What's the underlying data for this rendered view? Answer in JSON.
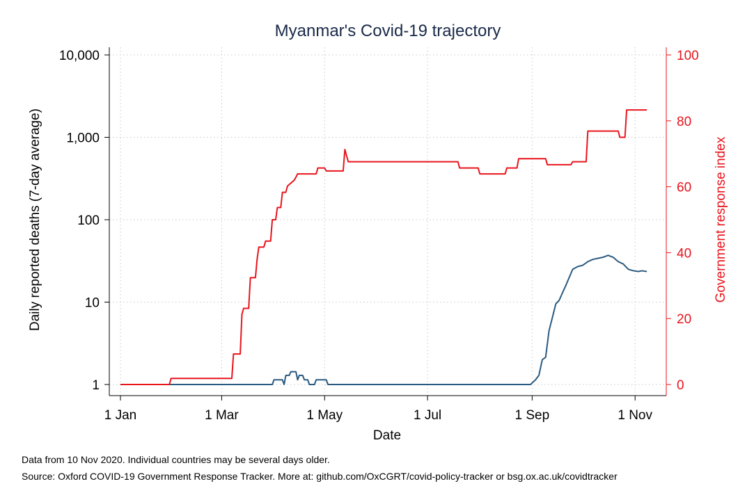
{
  "chart_data": {
    "type": "line",
    "title": "Myanmar's Covid-19 trajectory",
    "xlabel": "Date",
    "ylabel_left": "Daily reported deaths (7-day average)",
    "ylabel_right": "Government response index",
    "x_ticks": [
      "1 Jan",
      "1 Mar",
      "1 May",
      "1 Jul",
      "1 Sep",
      "1 Nov"
    ],
    "x_tick_dates": [
      "2020-01-01",
      "2020-03-01",
      "2020-05-01",
      "2020-07-01",
      "2020-09-01",
      "2020-11-01"
    ],
    "xlim": [
      "2020-01-01",
      "2020-11-10"
    ],
    "y_left": {
      "scale": "log",
      "lim": [
        1,
        10000
      ],
      "ticks": [
        1,
        10,
        100,
        1000,
        10000
      ],
      "tick_labels": [
        "1",
        "10",
        "100",
        "1,000",
        "10,000"
      ]
    },
    "y_right": {
      "scale": "linear",
      "lim": [
        0,
        100
      ],
      "ticks": [
        0,
        20,
        40,
        60,
        80,
        100
      ],
      "tick_labels": [
        "0",
        "20",
        "40",
        "60",
        "80",
        "100"
      ]
    },
    "grid": true,
    "colors": {
      "deaths": "#2a5a80",
      "response": "#e8141c",
      "right_axis": "#e8141c"
    },
    "series": [
      {
        "axis": "left",
        "color": "#2a5a80",
        "points": [
          [
            "2020-01-01",
            1
          ],
          [
            "2020-03-31",
            1
          ],
          [
            "2020-04-01",
            1.14
          ],
          [
            "2020-04-06",
            1.14
          ],
          [
            "2020-04-07",
            1
          ],
          [
            "2020-04-08",
            1.29
          ],
          [
            "2020-04-10",
            1.29
          ],
          [
            "2020-04-11",
            1.43
          ],
          [
            "2020-04-14",
            1.43
          ],
          [
            "2020-04-15",
            1.14
          ],
          [
            "2020-04-16",
            1.29
          ],
          [
            "2020-04-18",
            1.29
          ],
          [
            "2020-04-19",
            1.14
          ],
          [
            "2020-04-21",
            1.14
          ],
          [
            "2020-04-22",
            1
          ],
          [
            "2020-04-25",
            1
          ],
          [
            "2020-04-26",
            1.14
          ],
          [
            "2020-05-02",
            1.14
          ],
          [
            "2020-05-03",
            1
          ],
          [
            "2020-08-31",
            1
          ],
          [
            "2020-09-03",
            1.14
          ],
          [
            "2020-09-05",
            1.29
          ],
          [
            "2020-09-07",
            2
          ],
          [
            "2020-09-09",
            2.14
          ],
          [
            "2020-09-11",
            4.5
          ],
          [
            "2020-09-13",
            6.5
          ],
          [
            "2020-09-15",
            9.5
          ],
          [
            "2020-09-17",
            10.5
          ],
          [
            "2020-09-19",
            13
          ],
          [
            "2020-09-21",
            16
          ],
          [
            "2020-09-23",
            20
          ],
          [
            "2020-09-25",
            25
          ],
          [
            "2020-09-28",
            27
          ],
          [
            "2020-10-01",
            28
          ],
          [
            "2020-10-04",
            31
          ],
          [
            "2020-10-07",
            33
          ],
          [
            "2020-10-10",
            34
          ],
          [
            "2020-10-13",
            35
          ],
          [
            "2020-10-16",
            37
          ],
          [
            "2020-10-19",
            35
          ],
          [
            "2020-10-22",
            31
          ],
          [
            "2020-10-25",
            29
          ],
          [
            "2020-10-28",
            25
          ],
          [
            "2020-10-31",
            24
          ],
          [
            "2020-11-03",
            23.5
          ],
          [
            "2020-11-05",
            24
          ],
          [
            "2020-11-08",
            23.5
          ]
        ]
      },
      {
        "axis": "right",
        "color": "#e8141c",
        "points": [
          [
            "2020-01-01",
            0
          ],
          [
            "2020-01-30",
            0
          ],
          [
            "2020-01-31",
            1.85
          ],
          [
            "2020-03-07",
            1.85
          ],
          [
            "2020-03-08",
            9.26
          ],
          [
            "2020-03-12",
            9.26
          ],
          [
            "2020-03-13",
            21.3
          ],
          [
            "2020-03-14",
            23.1
          ],
          [
            "2020-03-17",
            23.1
          ],
          [
            "2020-03-18",
            32.4
          ],
          [
            "2020-03-21",
            32.4
          ],
          [
            "2020-03-22",
            38
          ],
          [
            "2020-03-23",
            41.7
          ],
          [
            "2020-03-26",
            41.7
          ],
          [
            "2020-03-27",
            43.5
          ],
          [
            "2020-03-30",
            43.5
          ],
          [
            "2020-03-31",
            50
          ],
          [
            "2020-04-02",
            50
          ],
          [
            "2020-04-03",
            53.7
          ],
          [
            "2020-04-05",
            53.7
          ],
          [
            "2020-04-06",
            58.3
          ],
          [
            "2020-04-08",
            58.3
          ],
          [
            "2020-04-09",
            60.2
          ],
          [
            "2020-04-11",
            61.1
          ],
          [
            "2020-04-13",
            62
          ],
          [
            "2020-04-14",
            62.9
          ],
          [
            "2020-04-15",
            63.9
          ],
          [
            "2020-04-26",
            63.9
          ],
          [
            "2020-04-27",
            65.7
          ],
          [
            "2020-05-01",
            65.7
          ],
          [
            "2020-05-02",
            64.8
          ],
          [
            "2020-05-12",
            64.8
          ],
          [
            "2020-05-13",
            71.3
          ],
          [
            "2020-05-14",
            69.4
          ],
          [
            "2020-05-15",
            67.6
          ],
          [
            "2020-07-19",
            67.6
          ],
          [
            "2020-07-20",
            65.7
          ],
          [
            "2020-07-31",
            65.7
          ],
          [
            "2020-08-01",
            63.9
          ],
          [
            "2020-08-16",
            63.9
          ],
          [
            "2020-08-17",
            65.7
          ],
          [
            "2020-08-23",
            65.7
          ],
          [
            "2020-08-24",
            68.5
          ],
          [
            "2020-09-09",
            68.5
          ],
          [
            "2020-09-10",
            66.7
          ],
          [
            "2020-09-24",
            66.7
          ],
          [
            "2020-09-25",
            67.6
          ],
          [
            "2020-10-03",
            67.6
          ],
          [
            "2020-10-04",
            76.9
          ],
          [
            "2020-10-22",
            76.9
          ],
          [
            "2020-10-23",
            75
          ],
          [
            "2020-10-26",
            75
          ],
          [
            "2020-10-27",
            83.3
          ],
          [
            "2020-11-08",
            83.3
          ]
        ]
      }
    ]
  },
  "notes": {
    "line1": "Data from 10 Nov 2020. Individual countries may be several days older.",
    "line2": "Source: Oxford COVID-19 Government Response Tracker. More at: github.com/OxCGRT/covid-policy-tracker or bsg.ox.ac.uk/covidtracker"
  }
}
